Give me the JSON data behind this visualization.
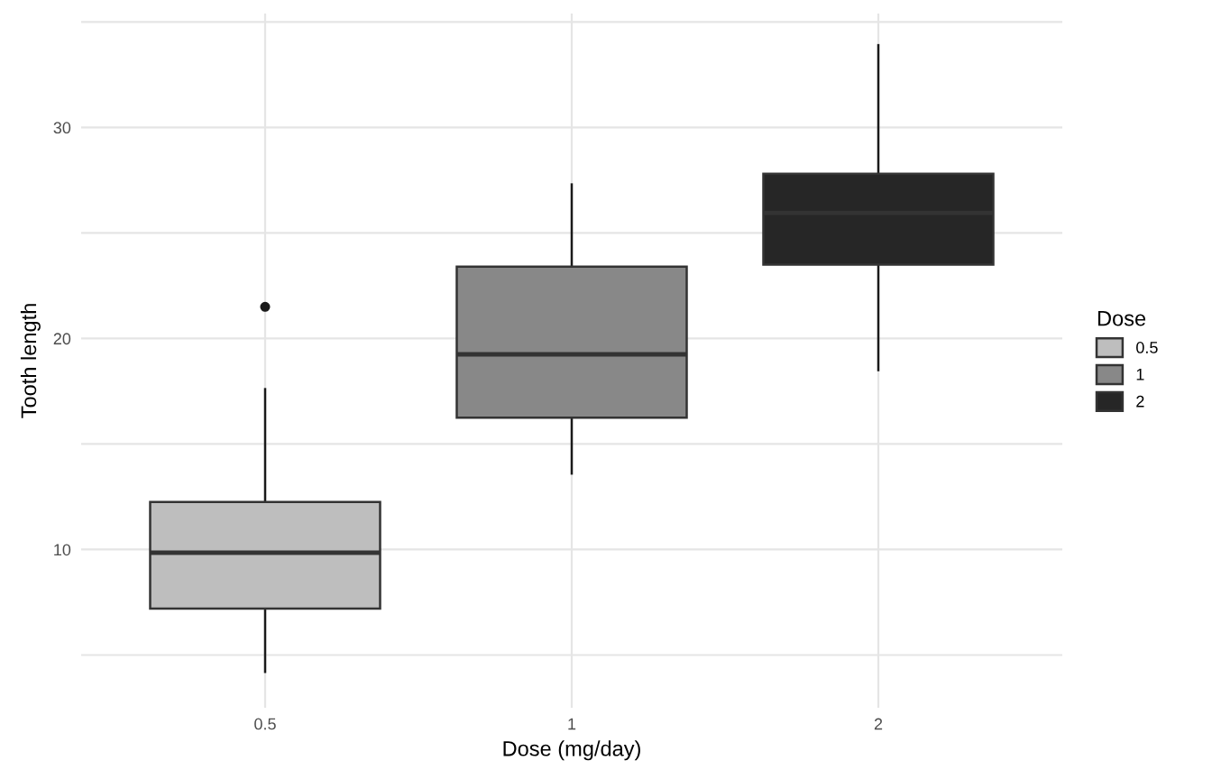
{
  "chart_data": {
    "type": "box",
    "xlabel": "Dose (mg/day)",
    "ylabel": "Tooth length",
    "legend_title": "Dose",
    "legend": "right",
    "grid": true,
    "categories": [
      "0.5",
      "1",
      "2"
    ],
    "series": [
      {
        "name": "0.5",
        "color": "#bebebe",
        "boxes": [
          {
            "low": 4.2,
            "q1": 7.2,
            "median": 9.85,
            "q3": 12.25,
            "high": 17.6,
            "outliers": [
              21.5
            ]
          },
          null,
          null
        ]
      },
      {
        "name": "1",
        "color": "#888888",
        "boxes": [
          null,
          {
            "low": 13.6,
            "q1": 16.25,
            "median": 19.25,
            "q3": 23.4,
            "high": 27.3
          },
          null
        ]
      },
      {
        "name": "2",
        "color": "#262626",
        "boxes": [
          null,
          null,
          {
            "low": 18.5,
            "q1": 23.5,
            "median": 25.95,
            "q3": 27.8,
            "high": 33.9
          }
        ]
      }
    ],
    "ylim": [
      2.5,
      35.4
    ],
    "yticks": [
      {
        "value": 5,
        "label": null
      },
      10,
      {
        "value": 15,
        "label": null
      },
      20,
      {
        "value": 25,
        "label": null
      },
      30,
      {
        "value": 35,
        "label": null
      }
    ]
  }
}
